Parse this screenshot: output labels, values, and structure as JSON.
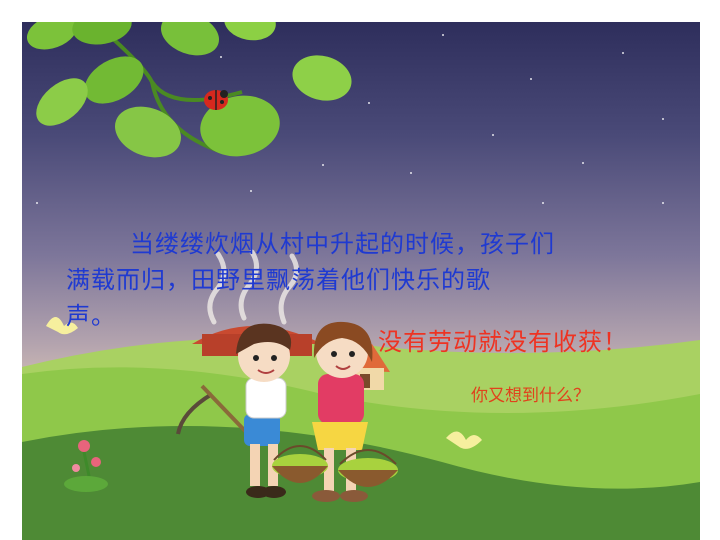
{
  "slide": {
    "paragraph_lines": [
      "当缕缕炊烟从村中升起的时候，孩子们",
      "满载而归，田野里飘荡着他们快乐的歌",
      "声。"
    ],
    "slogan": "没有劳动就没有收获！",
    "question": "你又想到什么？"
  },
  "colors": {
    "paragraph_text": "#1f3ad1",
    "slogan_text": "#ee3322",
    "question_text": "#e0421c",
    "sky_top": "#2e2e5c",
    "sky_bottom": "#e8d6c4",
    "grass_light": "#8fc84a",
    "grass_dark": "#4e8a35"
  },
  "illustration": {
    "icons": [
      "leaf-branch-icon",
      "ladybug-icon",
      "butterfly-icon",
      "flower-icon",
      "sickle-icon",
      "basket-icon",
      "house-icon",
      "chimney-smoke-icon"
    ]
  }
}
